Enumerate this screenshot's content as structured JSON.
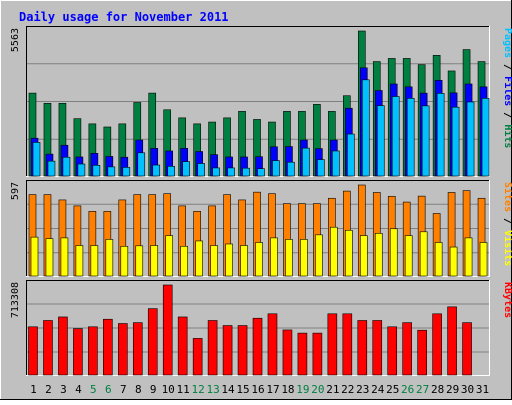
{
  "chart_data": {
    "type": "bar",
    "title": "Daily usage for November 2011",
    "categories": [
      "1",
      "2",
      "3",
      "4",
      "5",
      "6",
      "7",
      "8",
      "9",
      "10",
      "11",
      "12",
      "13",
      "14",
      "15",
      "16",
      "17",
      "18",
      "19",
      "20",
      "21",
      "22",
      "23",
      "24",
      "25",
      "26",
      "27",
      "28",
      "29",
      "30",
      "31"
    ],
    "weekend_days": [
      "5",
      "6",
      "12",
      "13",
      "19",
      "20",
      "26",
      "27"
    ],
    "panels": [
      {
        "key": "hits_files_pages",
        "max_label": "5563",
        "ymax": 5563,
        "right_label": [
          {
            "text": "Pages",
            "color": "#00c0ff"
          },
          {
            "text": " / ",
            "color": "#000000"
          },
          {
            "text": "Files",
            "color": "#0000ff"
          },
          {
            "text": " / ",
            "color": "#000000"
          },
          {
            "text": "Hits",
            "color": "#008040"
          }
        ],
        "series": [
          {
            "name": "Hits",
            "color": "#008040",
            "values": [
              3180,
              2790,
              2790,
              2200,
              2000,
              1880,
              2000,
              2820,
              3180,
              2540,
              2230,
              2000,
              2070,
              2230,
              2480,
              2170,
              2070,
              2480,
              2480,
              2750,
              2480,
              3080,
              5563,
              4390,
              4510,
              4510,
              4270,
              4630,
              4030,
              4850,
              4390
            ]
          },
          {
            "name": "Files",
            "color": "#0000ff",
            "values": [
              1450,
              840,
              1180,
              730,
              870,
              750,
              720,
              1380,
              1060,
              960,
              1060,
              940,
              820,
              730,
              730,
              740,
              1120,
              1130,
              1380,
              1050,
              1380,
              2600,
              4150,
              3280,
              3530,
              3420,
              3180,
              3670,
              3190,
              3530,
              3420
            ]
          },
          {
            "name": "Pages",
            "color": "#00c0ff",
            "values": [
              1290,
              570,
              720,
              460,
              410,
              350,
              330,
              890,
              420,
              370,
              550,
              480,
              310,
              310,
              300,
              280,
              590,
              530,
              1070,
              630,
              960,
              1610,
              3690,
              2700,
              3050,
              2980,
              2690,
              3170,
              2640,
              2840,
              2980
            ]
          }
        ]
      },
      {
        "key": "visits_sites",
        "max_label": "597",
        "ymax": 597,
        "right_label": [
          {
            "text": "Sites",
            "color": "#ff8000"
          },
          {
            "text": " / ",
            "color": "#000000"
          },
          {
            "text": "Visits",
            "color": "#ffff00"
          }
        ],
        "series": [
          {
            "name": "Visits",
            "color": "#ff8000",
            "values": [
              534,
              534,
              499,
              460,
              424,
              424,
              499,
              534,
              534,
              540,
              460,
              424,
              460,
              534,
              499,
              550,
              540,
              475,
              475,
              475,
              510,
              557,
              597,
              548,
              523,
              485,
              524,
              410,
              548,
              560,
              510
            ]
          },
          {
            "name": "Sites",
            "color": "#ffff00",
            "values": [
              255,
              245,
              250,
              200,
              200,
              240,
              195,
              198,
              200,
              265,
              195,
              230,
              200,
              210,
              200,
              220,
              250,
              240,
              240,
              270,
              320,
              300,
              265,
              280,
              310,
              265,
              290,
              220,
              190,
              250,
              220
            ]
          }
        ]
      },
      {
        "key": "kbytes",
        "max_label": "713308",
        "ymax": 713308,
        "right_label": [
          {
            "text": "KBytes",
            "color": "#ff0000"
          }
        ],
        "series": [
          {
            "name": "KBytes",
            "color": "#ff0000",
            "values": [
              382000,
              432000,
              460000,
              367000,
              382000,
              442000,
              408000,
              415000,
              526000,
              713308,
              460000,
              290000,
              432000,
              392000,
              392000,
              450000,
              485000,
              357000,
              332000,
              332000,
              485000,
              485000,
              432000,
              432000,
              382000,
              415000,
              355000,
              485000,
              540000,
              415000,
              0
            ]
          }
        ]
      }
    ]
  }
}
